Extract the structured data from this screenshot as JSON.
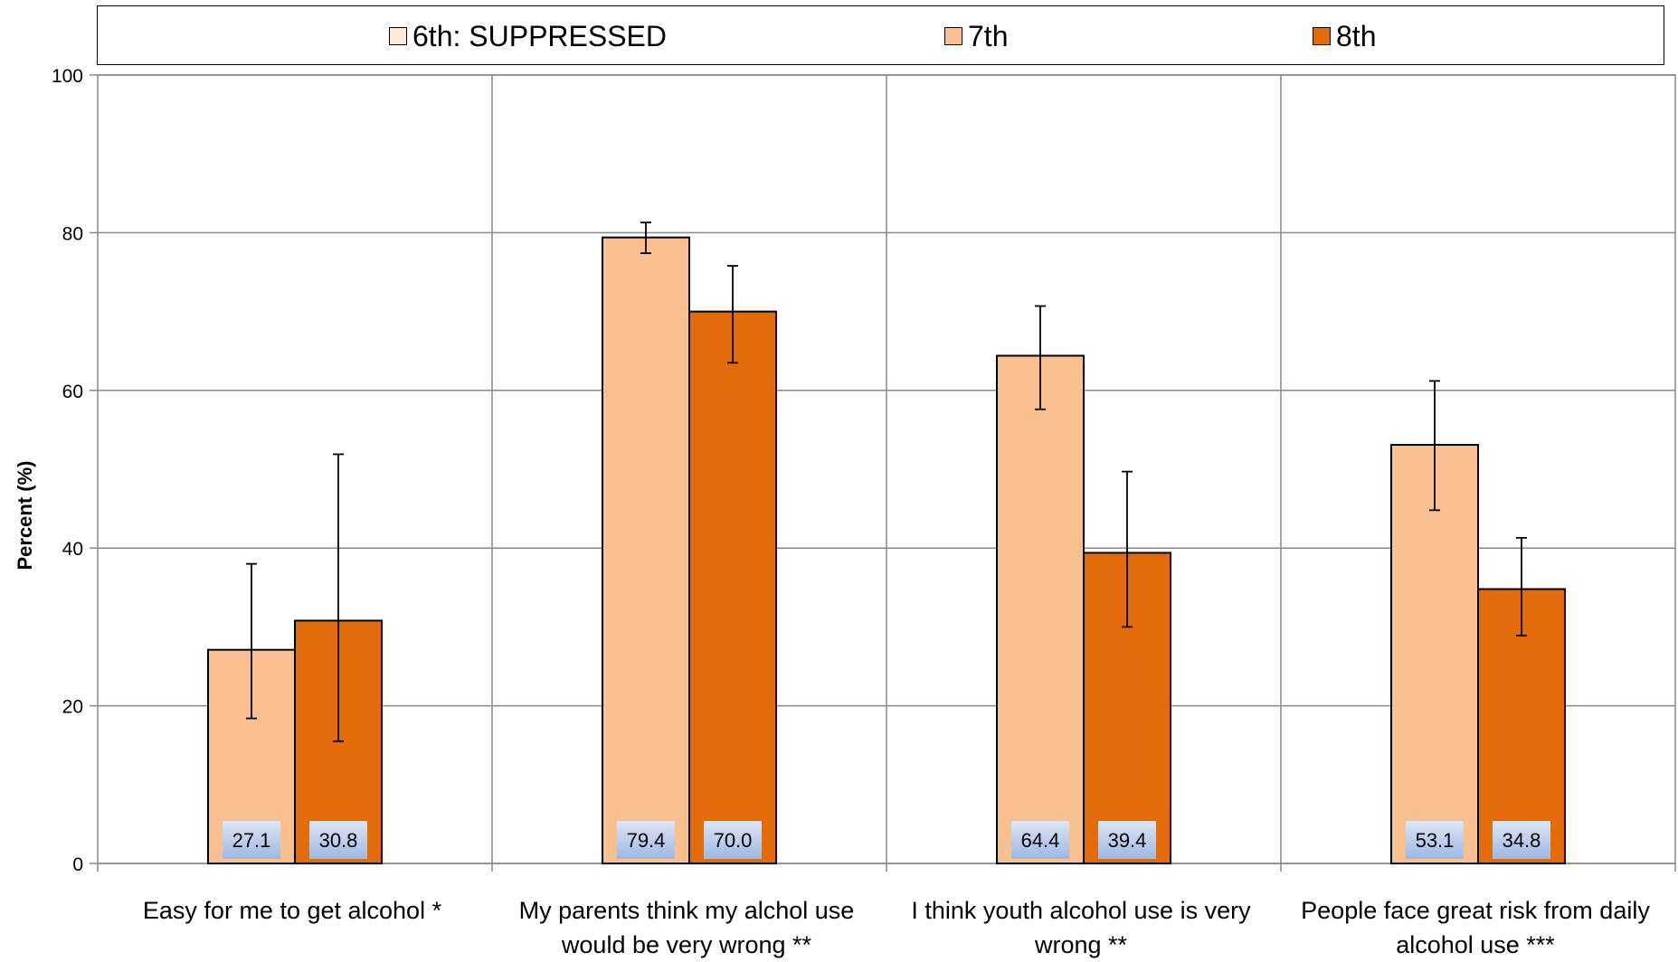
{
  "chart_data": {
    "type": "bar",
    "categories": [
      "Easy for me to get alcohol *",
      "My parents think my alchol use would be very wrong **",
      "I think youth alcohol use is very wrong **",
      "People face great risk from daily alcohol use ***"
    ],
    "series": [
      {
        "name": "6th: SUPPRESSED",
        "color": "#FDE9D9",
        "values": [
          null,
          null,
          null,
          null
        ]
      },
      {
        "name": "7th",
        "color": "#FAC090",
        "values": [
          27.1,
          79.4,
          64.4,
          53.1
        ],
        "error_low": [
          18.4,
          77.4,
          57.6,
          44.8
        ],
        "error_high": [
          38.0,
          81.3,
          70.7,
          61.2
        ],
        "labels": [
          "27.1",
          "79.4",
          "64.4",
          "53.1"
        ]
      },
      {
        "name": "8th",
        "color": "#E36C09",
        "values": [
          30.8,
          70.0,
          39.4,
          34.8
        ],
        "error_low": [
          15.5,
          63.5,
          30.0,
          28.9
        ],
        "error_high": [
          51.9,
          75.8,
          49.7,
          41.3
        ],
        "labels": [
          "30.8",
          "70.0",
          "39.4",
          "34.8"
        ]
      }
    ],
    "xlabel": "",
    "ylabel": "Percent (%)",
    "ylim": [
      0,
      100
    ],
    "yticks": [
      0,
      20,
      40,
      60,
      80,
      100
    ],
    "grid": true,
    "legend_position": "top"
  }
}
